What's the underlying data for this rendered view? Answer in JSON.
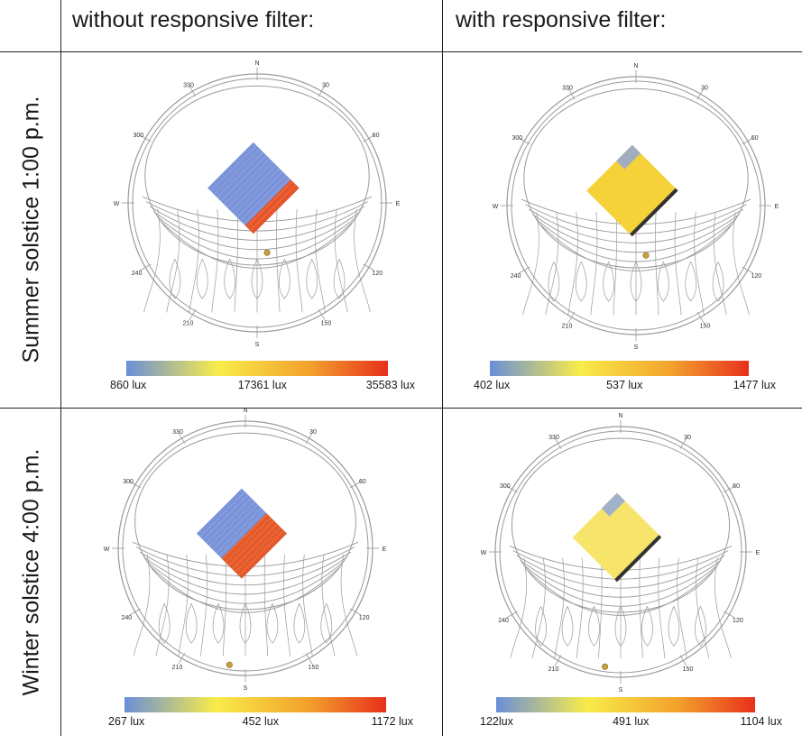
{
  "columns": [
    "without responsive filter:",
    "with responsive filter:"
  ],
  "rows": [
    "Summer solstice 1:00 p.m.",
    "Winter solstice 4:00 p.m."
  ],
  "compass": {
    "north": "N",
    "south": "S",
    "east": "E",
    "west": "W",
    "deg30": "30",
    "deg60": "60",
    "deg120": "120",
    "deg150": "150",
    "deg210": "210",
    "deg240": "240",
    "deg300": "300",
    "deg330": "330"
  },
  "panels": [
    {
      "id": "summer-without",
      "legend": {
        "min": "860 lux",
        "mid": "17361 lux",
        "max": "35583 lux"
      },
      "patch": {
        "style": "split",
        "base": "#7b93d9",
        "hot": "#e8552a",
        "hot_share": 0.18
      }
    },
    {
      "id": "summer-with",
      "legend": {
        "min": "402 lux",
        "mid": "537 lux",
        "max": "1477 lux"
      },
      "patch": {
        "style": "uniform",
        "base": "#f5d23a",
        "cool": "#8aa4e0",
        "edge": "#333333"
      }
    },
    {
      "id": "winter-without",
      "legend": {
        "min": "267 lux",
        "mid": "452 lux",
        "max": "1172 lux"
      },
      "patch": {
        "style": "split",
        "base": "#7b93d9",
        "hot": "#e55a28",
        "hot_share": 0.45
      }
    },
    {
      "id": "winter-with",
      "legend": {
        "min": "122lux",
        "mid": "491 lux",
        "max": "1104 lux"
      },
      "patch": {
        "style": "uniform",
        "base": "#f7e46a",
        "cool": "#8aa4e0",
        "edge": "#333333"
      }
    }
  ],
  "colors": {
    "scale_low": "#6a8fd8",
    "scale_mid": "#f8ec4a",
    "scale_high": "#e8301c",
    "sun_marker": "#c8a23a",
    "diagram_line": "#9a9a9a"
  }
}
